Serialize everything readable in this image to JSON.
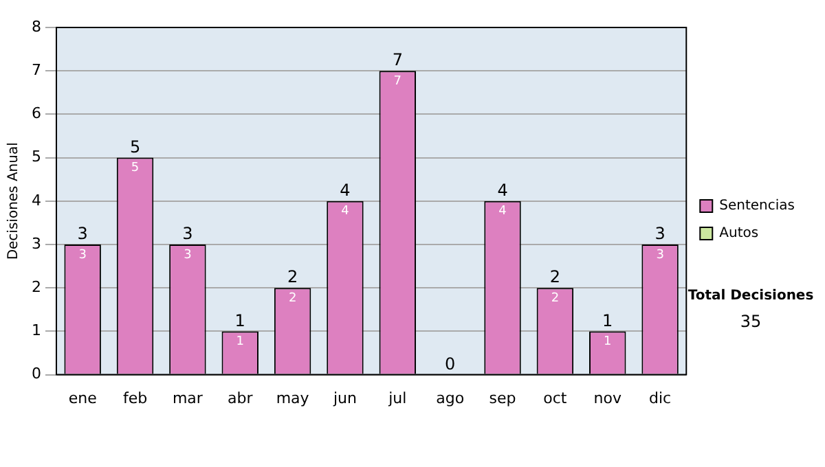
{
  "chart_data": {
    "type": "bar",
    "stacked": true,
    "ylabel": "Decisiones Anual",
    "categories": [
      "ene",
      "feb",
      "mar",
      "abr",
      "may",
      "jun",
      "jul",
      "ago",
      "sep",
      "oct",
      "nov",
      "dic"
    ],
    "series": [
      {
        "name": "Sentencias",
        "color": "#dd80c0",
        "values": [
          3,
          5,
          3,
          1,
          2,
          4,
          7,
          0,
          4,
          2,
          1,
          3
        ],
        "value_labels": [
          "3",
          "5",
          "3",
          "1",
          "2",
          "4",
          "7",
          null,
          "4",
          "2",
          "1",
          "3"
        ]
      },
      {
        "name": "Autos",
        "color": "#cce8a0",
        "values": [
          0,
          0,
          0,
          0,
          0,
          0,
          0,
          0,
          0,
          0,
          0,
          0
        ]
      }
    ],
    "totals": [
      "3",
      "5",
      "3",
      "1",
      "2",
      "4",
      "7",
      "0",
      "4",
      "2",
      "1",
      "3"
    ],
    "ylim": [
      0,
      8
    ],
    "yticks": [
      0,
      1,
      2,
      3,
      4,
      5,
      6,
      7,
      8
    ],
    "grid": "y",
    "legend": "right",
    "annotations": [
      "Total Decisiones",
      "35"
    ]
  }
}
